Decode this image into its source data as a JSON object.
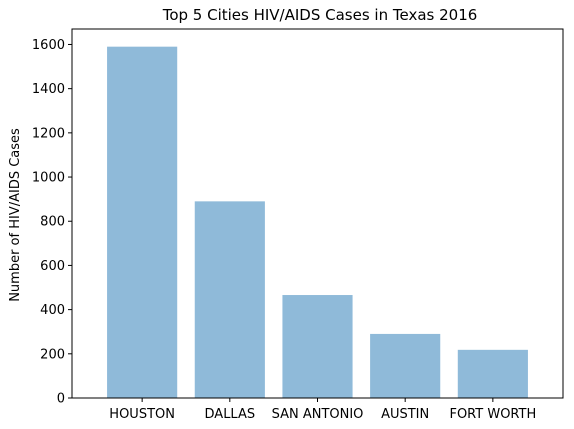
{
  "chart_data": {
    "type": "bar",
    "title": "Top 5 Cities HIV/AIDS Cases in Texas 2016",
    "xlabel": "",
    "ylabel": "Number of HIV/AIDS Cases",
    "categories": [
      "HOUSTON",
      "DALLAS",
      "SAN ANTONIO",
      "AUSTIN",
      "FORT WORTH"
    ],
    "values": [
      1590,
      890,
      466,
      290,
      218
    ],
    "ylim": [
      0,
      1670
    ],
    "yticks": [
      0,
      200,
      400,
      600,
      800,
      1000,
      1200,
      1400,
      1600
    ],
    "grid": false,
    "bar_color": "#8fbad9"
  }
}
